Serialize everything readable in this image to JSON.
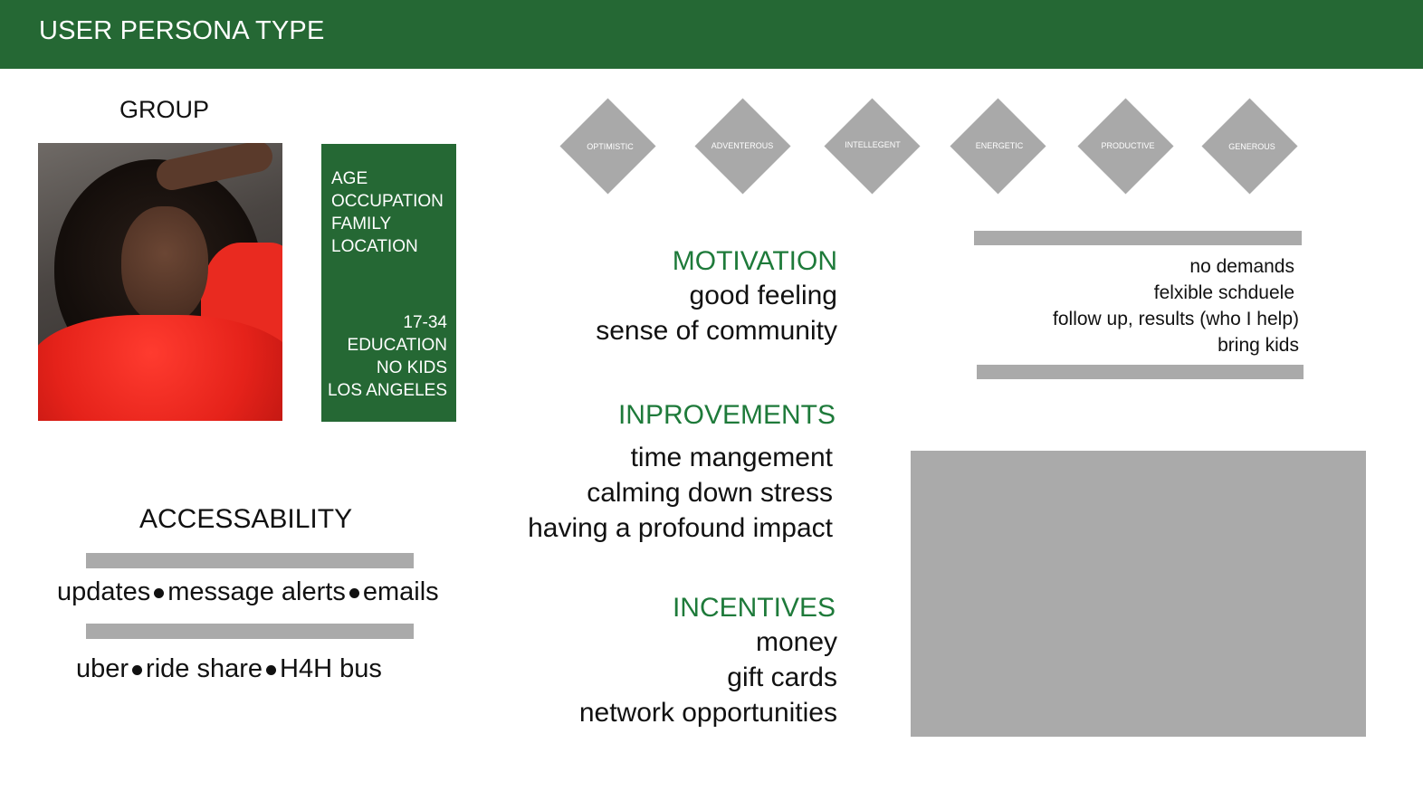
{
  "header": {
    "title": "USER PERSONA TYPE"
  },
  "group": {
    "title": "GROUP"
  },
  "demographics": {
    "labels": [
      "AGE",
      "OCCUPATION",
      "FAMILY",
      "LOCATION"
    ],
    "values": [
      "17-34",
      "EDUCATION",
      "NO KIDS",
      "LOS ANGELES"
    ]
  },
  "traits": [
    "OPTIMISTIC",
    "ADVENTEROUS",
    "INTELLEGENT",
    "ENERGETIC",
    "PRODUCTIVE",
    "GENEROUS"
  ],
  "motivation": {
    "title": "MOTIVATION",
    "items": [
      "good feeling",
      "sense of community"
    ]
  },
  "improvements": {
    "title": "INPROVEMENTS",
    "items": [
      "time mangement",
      "calming down stress",
      "having a profound impact"
    ]
  },
  "incentives": {
    "title": "INCENTIVES",
    "items": [
      "money",
      "gift cards",
      "network opportunities"
    ]
  },
  "preferences": {
    "items": [
      "no demands",
      "felxible schduele",
      "follow up, results (who I help)",
      "bring kids"
    ]
  },
  "accessability": {
    "title": "ACCESSABILITY",
    "row1": [
      "updates",
      "message alerts",
      "emails"
    ],
    "row2": [
      "uber",
      "ride share",
      "H4H bus"
    ]
  },
  "colors": {
    "brand_green": "#256834",
    "heading_green": "#1e7a3a",
    "placeholder_gray": "#aaaaaa"
  }
}
